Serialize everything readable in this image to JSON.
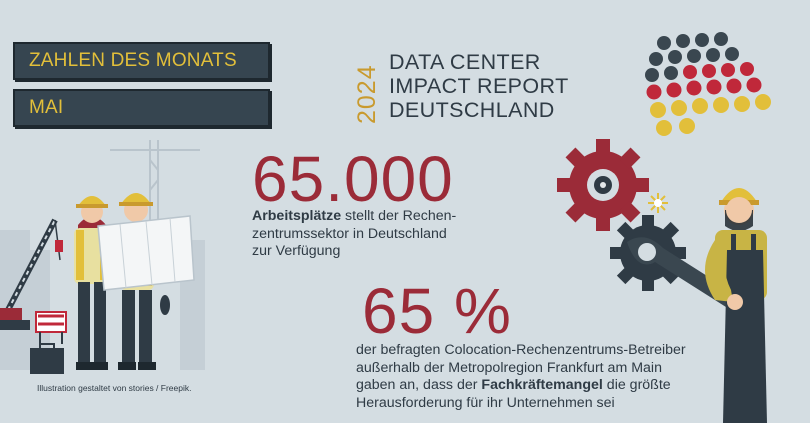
{
  "banners": {
    "title": "ZAHLEN DES MONATS",
    "month": "MAI"
  },
  "report": {
    "year": "2024",
    "line1": "DATA CENTER",
    "line2": "IMPACT REPORT",
    "line3": "DEUTSCHLAND"
  },
  "stat1": {
    "number": "65.000",
    "bold": "Arbeitsplätze",
    "line1_rest": " stellt der Rechen-",
    "line2": "zentrumssektor in Deutschland",
    "line3": "zur Verfügung"
  },
  "stat2": {
    "number": "65 %",
    "line1": "der befragten Colocation-Rechenzentrums-Betreiber",
    "line2": "außerhalb der Metropolregion Frankfurt am Main",
    "line3_pre": "gaben an, dass der ",
    "line3_bold": "Fachkräftemangel",
    "line3_post": " die größte",
    "line4": "Herausforderung für ihr Unternehmen sei"
  },
  "credit": "Illustration gestaltet von stories / Freepik.",
  "colors": {
    "accent_red": "#9b2b38",
    "banner_bg": "#364550",
    "banner_text": "#e2bf3a",
    "dot_dark": "#3a4750",
    "dot_red": "#c0283a",
    "dot_gold": "#e2bf3a",
    "background": "#d4dde2"
  },
  "icons": [
    "crane-icon",
    "gear-icon",
    "wrench-icon",
    "flag-dots-icon",
    "spark-icon"
  ]
}
